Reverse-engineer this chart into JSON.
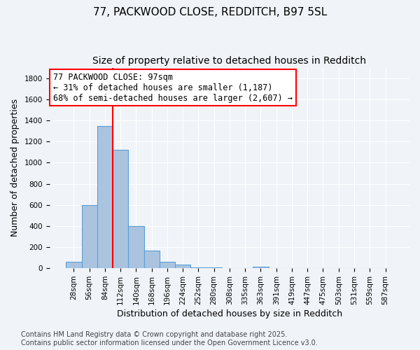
{
  "title_line1": "77, PACKWOOD CLOSE, REDDITCH, B97 5SL",
  "title_line2": "Size of property relative to detached houses in Redditch",
  "xlabel": "Distribution of detached houses by size in Redditch",
  "ylabel": "Number of detached properties",
  "categories": [
    "28sqm",
    "56sqm",
    "84sqm",
    "112sqm",
    "140sqm",
    "168sqm",
    "196sqm",
    "224sqm",
    "252sqm",
    "280sqm",
    "308sqm",
    "335sqm",
    "363sqm",
    "391sqm",
    "419sqm",
    "447sqm",
    "475sqm",
    "503sqm",
    "531sqm",
    "559sqm",
    "587sqm"
  ],
  "values": [
    60,
    600,
    1350,
    1120,
    400,
    170,
    60,
    35,
    5,
    5,
    0,
    0,
    15,
    0,
    0,
    0,
    0,
    0,
    0,
    0,
    0
  ],
  "bar_color": "#aac4e0",
  "bar_edge_color": "#5a9fd4",
  "vline_x": 2.5,
  "vline_color": "red",
  "annotation_text": "77 PACKWOOD CLOSE: 97sqm\n← 31% of detached houses are smaller (1,187)\n68% of semi-detached houses are larger (2,607) →",
  "annotation_box_color": "white",
  "annotation_box_edge_color": "red",
  "ylim": [
    0,
    1900
  ],
  "yticks": [
    0,
    200,
    400,
    600,
    800,
    1000,
    1200,
    1400,
    1600,
    1800
  ],
  "footnote": "Contains HM Land Registry data © Crown copyright and database right 2025.\nContains public sector information licensed under the Open Government Licence v3.0.",
  "bg_color": "#f0f4f8",
  "grid_color": "white",
  "title_fontsize": 11,
  "subtitle_fontsize": 10,
  "tick_fontsize": 7.5,
  "label_fontsize": 9,
  "annotation_fontsize": 8.5,
  "footnote_fontsize": 7
}
